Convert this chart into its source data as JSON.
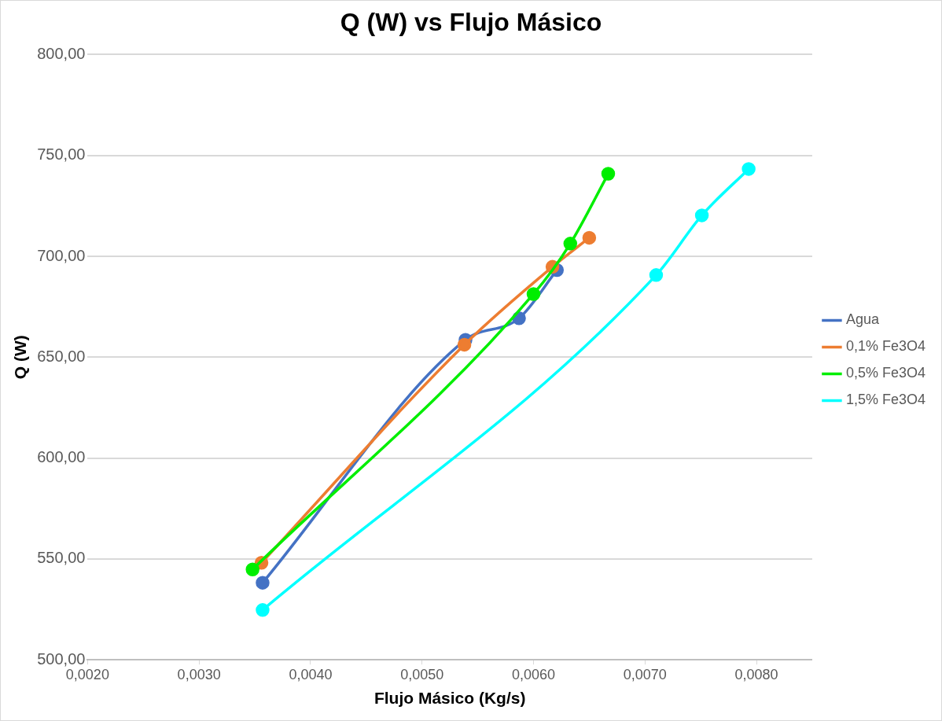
{
  "chart_data": {
    "type": "line",
    "title": "Q (W) vs Flujo Másico",
    "xlabel": "Flujo Másico (Kg/s)",
    "ylabel": "Q (W)",
    "xlim": [
      0.002,
      0.0085
    ],
    "xticks": [
      {
        "value": 0.002,
        "label": "0,0020"
      },
      {
        "value": 0.003,
        "label": "0,0030"
      },
      {
        "value": 0.004,
        "label": "0,0040"
      },
      {
        "value": 0.005,
        "label": "0,0050"
      },
      {
        "value": 0.006,
        "label": "0,0060"
      },
      {
        "value": 0.007,
        "label": "0,0070"
      },
      {
        "value": 0.008,
        "label": "0,0080"
      }
    ],
    "ylim": [
      500,
      800
    ],
    "yticks": [
      {
        "value": 500,
        "label": "500,00"
      },
      {
        "value": 550,
        "label": "550,00"
      },
      {
        "value": 600,
        "label": "600,00"
      },
      {
        "value": 650,
        "label": "650,00"
      },
      {
        "value": 700,
        "label": "700,00"
      },
      {
        "value": 750,
        "label": "750,00"
      },
      {
        "value": 800,
        "label": "800,00"
      }
    ],
    "grid": "y",
    "legend": "right",
    "marker": "circle",
    "line_style": "solid",
    "series": [
      {
        "name": "Agua",
        "color": "#4472c4",
        "x": [
          0.00357,
          0.00539,
          0.00587,
          0.00621
        ],
        "values": [
          538.2,
          658.6,
          669.3,
          693.2
        ]
      },
      {
        "name": "0,1% Fe3O4",
        "color": "#ed7d31",
        "x": [
          0.00356,
          0.00538,
          0.00617,
          0.0065
        ],
        "values": [
          548.1,
          656.2,
          694.8,
          709.2
        ]
      },
      {
        "name": "0,5% Fe3O4",
        "color": "#00ee00",
        "x": [
          0.00348,
          0.006,
          0.00633,
          0.00667
        ],
        "values": [
          544.8,
          681.3,
          706.3,
          740.9
        ]
      },
      {
        "name": "1,5% Fe3O4",
        "color": "#00ffff",
        "x": [
          0.00357,
          0.0071,
          0.00751,
          0.00793
        ],
        "values": [
          524.7,
          690.7,
          720.3,
          743.3
        ]
      }
    ]
  }
}
